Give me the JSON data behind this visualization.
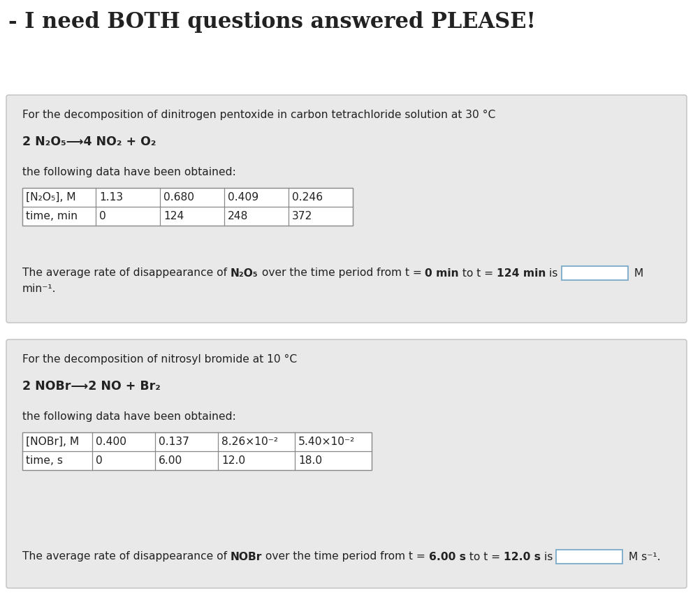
{
  "title": "- I need BOTH questions answered PLEASE!",
  "bg_color": "#ffffff",
  "panel_bg": "#e9e9e9",
  "panel_edge": "#c0c0c0",
  "text_color": "#222222",
  "table_bg": "#ffffff",
  "table_edge": "#888888",
  "box_edge": "#7aaac8",
  "panel1_intro": "For the decomposition of dinitrogen pentoxide in carbon tetrachloride solution at 30 °C",
  "panel1_equation": "2 N₂O₅⟶4 NO₂ + O₂",
  "panel1_data_intro": "the following data have been obtained:",
  "panel1_row1_label": "[N₂O₅], M",
  "panel1_row1_values": [
    "1.13",
    "0.680",
    "0.409",
    "0.246"
  ],
  "panel1_row2_label": "time, min",
  "panel1_row2_values": [
    "0",
    "124",
    "248",
    "372"
  ],
  "panel2_intro": "For the decomposition of nitrosyl bromide at 10 °C",
  "panel2_equation": "2 NOBr⟶2 NO + Br₂",
  "panel2_data_intro": "the following data have been obtained:",
  "panel2_row1_label": "[NOBr], M",
  "panel2_row1_values": [
    "0.400",
    "0.137",
    "8.26×10⁻²",
    "5.40×10⁻²"
  ],
  "panel2_row2_label": "time, s",
  "panel2_row2_values": [
    "0",
    "6.00",
    "12.0",
    "18.0"
  ],
  "fs_title": 22,
  "fs_body": 11.2,
  "fs_eq": 12.5
}
